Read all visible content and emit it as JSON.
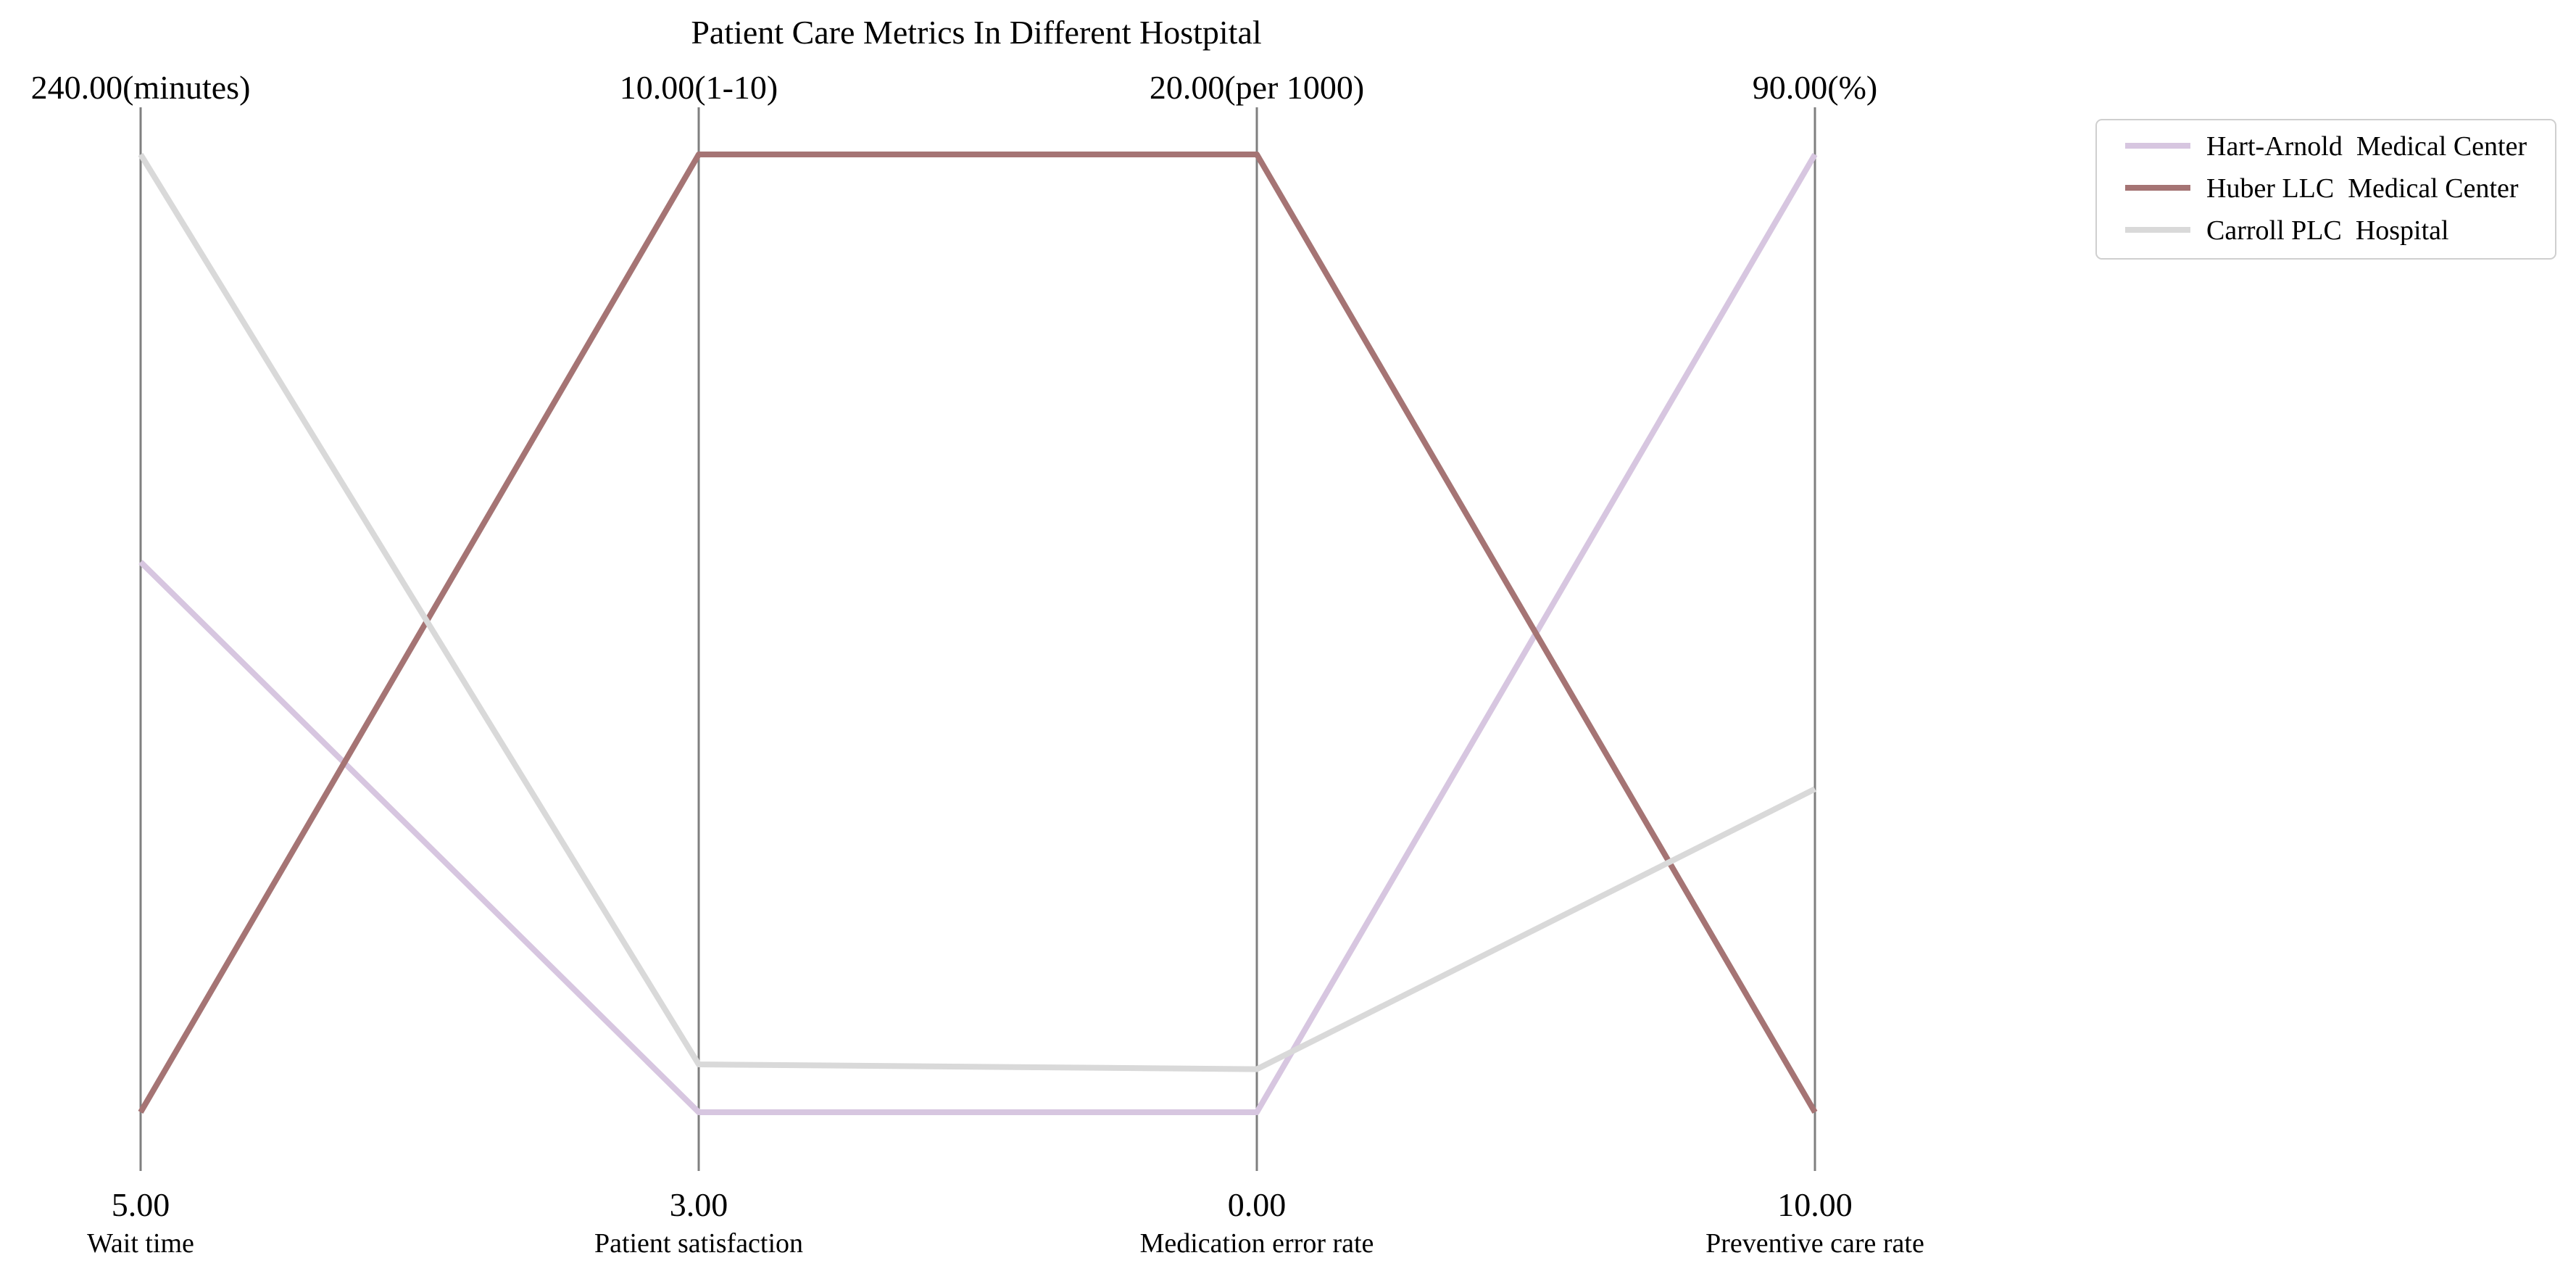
{
  "chart_data": {
    "type": "parallel-coordinates",
    "title": "Patient Care Metrics In Different Hostpital",
    "axes": [
      {
        "name": "Wait time",
        "unit": "minutes",
        "min": 5.0,
        "max": 240.0,
        "min_label": "5.00",
        "max_label": "240.00(minutes)"
      },
      {
        "name": "Patient satisfaction",
        "unit": "1-10",
        "min": 3.0,
        "max": 10.0,
        "min_label": "3.00",
        "max_label": "10.00(1-10)"
      },
      {
        "name": "Medication error rate",
        "unit": "per 1000",
        "min": 0.0,
        "max": 20.0,
        "min_label": "0.00",
        "max_label": "20.00(per 1000)"
      },
      {
        "name": "Preventive care rate",
        "unit": "%",
        "min": 10.0,
        "max": 90.0,
        "min_label": "10.00",
        "max_label": "90.00(%)"
      }
    ],
    "series": [
      {
        "name": "Hart-Arnold  Medical Center",
        "color": "#d7c6e0",
        "values": [
          140,
          3.0,
          0.0,
          90
        ]
      },
      {
        "name": "Huber LLC  Medical Center",
        "color": "#a57474",
        "values": [
          5,
          10.0,
          20.0,
          10
        ]
      },
      {
        "name": "Carroll PLC  Hospital",
        "color": "#d9d9d9",
        "values": [
          240,
          3.35,
          0.9,
          37
        ]
      }
    ],
    "legend_position": "top-right",
    "grid": false
  }
}
